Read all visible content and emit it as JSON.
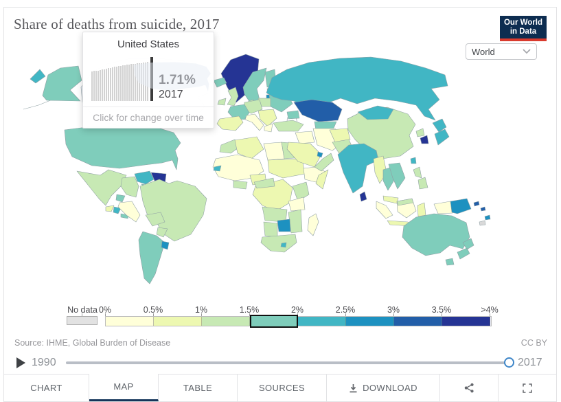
{
  "header": {
    "title": "Share of deaths from suicide, 2017",
    "logo_line1": "Our World",
    "logo_line2": "in Data"
  },
  "controls": {
    "entity_dropdown": {
      "value": "World"
    }
  },
  "tooltip": {
    "country": "United States",
    "value": "1.71%",
    "year": "2017",
    "hint": "Click for change over time",
    "sparkline_values": [
      1.31,
      1.32,
      1.33,
      1.34,
      1.36,
      1.38,
      1.4,
      1.42,
      1.44,
      1.46,
      1.48,
      1.5,
      1.52,
      1.54,
      1.55,
      1.57,
      1.58,
      1.6,
      1.61,
      1.62,
      1.63,
      1.64,
      1.65,
      1.66,
      1.67,
      1.68,
      1.7,
      1.71
    ]
  },
  "legend": {
    "no_data_label": "No data",
    "no_data_color": "#e2e2e2",
    "tick_labels": [
      "0%",
      "0.5%",
      "1%",
      "1.5%",
      "2%",
      "2.5%",
      "3%",
      "3.5%",
      ">4%"
    ],
    "bin_colors": [
      "#ffffd9",
      "#edf8b1",
      "#c7e9b4",
      "#7fcdbb",
      "#41b6c4",
      "#1d91c0",
      "#225ea8",
      "#253494"
    ],
    "highlighted_bin_index": 3
  },
  "footer": {
    "source": "Source: IHME, Global Burden of Disease",
    "license": "CC BY"
  },
  "timeline": {
    "start_year": "1990",
    "end_year": "2017"
  },
  "tabs": [
    {
      "id": "chart",
      "label": "CHART",
      "active": false
    },
    {
      "id": "map",
      "label": "MAP",
      "active": true
    },
    {
      "id": "table",
      "label": "TABLE",
      "active": false
    },
    {
      "id": "sources",
      "label": "SOURCES",
      "active": false
    },
    {
      "id": "download",
      "label": "DOWNLOAD",
      "active": false
    }
  ],
  "chart_data": {
    "type": "choropleth_map",
    "title": "Share of deaths from suicide, 2017",
    "unit": "%",
    "year_shown": 2017,
    "timeline_range": [
      1990,
      2017
    ],
    "legend_bin_edges": [
      "0%",
      "0.5%",
      "1%",
      "1.5%",
      "2%",
      "2.5%",
      "3%",
      "3.5%",
      ">4%"
    ],
    "selected_country": {
      "name": "United States",
      "share_of_deaths_pct": 1.71,
      "year": 2017,
      "bin": "1.5%-2%"
    },
    "source": "IHME, Global Burden of Disease"
  },
  "map": {
    "regions": [
      {
        "id": "canada",
        "name": "Canada",
        "color": "#e9eef6"
      },
      {
        "id": "greenland",
        "name": "Greenland",
        "color": "#253494"
      },
      {
        "id": "iceland",
        "name": "Iceland",
        "color": "#7fcdbb"
      },
      {
        "id": "chukotka-russia",
        "name": "Russia (Chukotka)",
        "color": "#41b6c4"
      },
      {
        "id": "aleutian-islands",
        "name": "Aleutian Islands",
        "color": "none"
      },
      {
        "id": "alaska",
        "name": "United States (Alaska)",
        "color": "#7fcdbb"
      },
      {
        "id": "usa",
        "name": "United States",
        "color": "#7fcdbb"
      },
      {
        "id": "mexico",
        "name": "Mexico",
        "color": "#c7e9b4"
      },
      {
        "id": "guatemala",
        "name": "Guatemala",
        "color": "#edf8b1"
      },
      {
        "id": "nicaragua",
        "name": "Nicaragua",
        "color": "#41b6c4"
      },
      {
        "id": "panama",
        "name": "Panama",
        "color": "#7fcdbb"
      },
      {
        "id": "cuba",
        "name": "Cuba",
        "color": "#7fcdbb"
      },
      {
        "id": "hispaniola",
        "name": "Haiti / Dominican Rep.",
        "color": "#41b6c4"
      },
      {
        "id": "venezuela",
        "name": "Venezuela",
        "color": "#41b6c4"
      },
      {
        "id": "guyana-suriname",
        "name": "Guyana / Suriname",
        "color": "#253494"
      },
      {
        "id": "colombia",
        "name": "Colombia",
        "color": "#c7e9b4"
      },
      {
        "id": "ecuador",
        "name": "Ecuador",
        "color": "#7fcdbb"
      },
      {
        "id": "peru",
        "name": "Peru",
        "color": "#ffffd9"
      },
      {
        "id": "brazil",
        "name": "Brazil",
        "color": "#c7e9b4"
      },
      {
        "id": "bolivia",
        "name": "Bolivia",
        "color": "#c7e9b4"
      },
      {
        "id": "paraguay",
        "name": "Paraguay",
        "color": "#c7e9b4"
      },
      {
        "id": "argentina-chile",
        "name": "Argentina / Chile",
        "color": "#7fcdbb"
      },
      {
        "id": "uruguay",
        "name": "Uruguay",
        "color": "#1d91c0"
      },
      {
        "id": "morocco",
        "name": "Morocco",
        "color": "#c7e9b4"
      },
      {
        "id": "algeria",
        "name": "Algeria",
        "color": "#edf8b1"
      },
      {
        "id": "libya",
        "name": "Libya",
        "color": "#ffffd9"
      },
      {
        "id": "egypt",
        "name": "Egypt",
        "color": "#c7e9b4"
      },
      {
        "id": "west-africa",
        "name": "West Africa",
        "color": "#ffffd9"
      },
      {
        "id": "senegal",
        "name": "Senegal",
        "color": "#41b6c4"
      },
      {
        "id": "nigeria",
        "name": "Nigeria",
        "color": "#edf8b1"
      },
      {
        "id": "ghana-ivory-coast",
        "name": "Ghana / Côte d'Ivoire",
        "color": "#c7e9b4"
      },
      {
        "id": "sudan-chad",
        "name": "Sudan / Chad",
        "color": "#edf8b1"
      },
      {
        "id": "ethiopia",
        "name": "Ethiopia",
        "color": "#ffffd9"
      },
      {
        "id": "somalia",
        "name": "Somalia",
        "color": "#edf8b1"
      },
      {
        "id": "central-africa",
        "name": "DR Congo",
        "color": "#edf8b1"
      },
      {
        "id": "cameroon-car",
        "name": "Cameroon / CAR",
        "color": "#c7e9b4"
      },
      {
        "id": "kenya",
        "name": "Kenya",
        "color": "#c7e9b4"
      },
      {
        "id": "tanzania",
        "name": "Tanzania",
        "color": "#ffffd9"
      },
      {
        "id": "angola-zambia",
        "name": "Angola / Zambia",
        "color": "#c7e9b4"
      },
      {
        "id": "mozambique",
        "name": "Mozambique",
        "color": "#c7e9b4"
      },
      {
        "id": "zimbabwe",
        "name": "Zimbabwe",
        "color": "#1d91c0"
      },
      {
        "id": "namibia-botswana",
        "name": "Namibia / Botswana",
        "color": "#c7e9b4"
      },
      {
        "id": "south-africa",
        "name": "South Africa",
        "color": "#c7e9b4"
      },
      {
        "id": "lesotho",
        "name": "Lesotho",
        "color": "#41b6c4"
      },
      {
        "id": "madagascar",
        "name": "Madagascar",
        "color": "#ffffd9"
      },
      {
        "id": "ireland",
        "name": "Ireland",
        "color": "#c7e9b4"
      },
      {
        "id": "uk",
        "name": "United Kingdom",
        "color": "#c7e9b4"
      },
      {
        "id": "norway-sweden",
        "name": "Norway / Sweden",
        "color": "#7fcdbb"
      },
      {
        "id": "finland",
        "name": "Finland",
        "color": "#7fcdbb"
      },
      {
        "id": "denmark",
        "name": "Denmark",
        "color": "#c7e9b4"
      },
      {
        "id": "baltics",
        "name": "Estonia / Latvia",
        "color": "#c7e9b4"
      },
      {
        "id": "lithuania",
        "name": "Lithuania",
        "color": "#1d91c0"
      },
      {
        "id": "ukraine-belarus",
        "name": "Ukraine / Belarus",
        "color": "#7fcdbb"
      },
      {
        "id": "poland",
        "name": "Poland",
        "color": "#c7e9b4"
      },
      {
        "id": "germany-central-europe",
        "name": "Germany / Central Europe",
        "color": "#c7e9b4"
      },
      {
        "id": "france",
        "name": "France",
        "color": "#7fcdbb"
      },
      {
        "id": "iberia",
        "name": "Spain / Portugal",
        "color": "#edf8b1"
      },
      {
        "id": "italy",
        "name": "Italy",
        "color": "#ffffd9"
      },
      {
        "id": "balkans",
        "name": "Balkans",
        "color": "#edf8b1"
      },
      {
        "id": "greece",
        "name": "Greece",
        "color": "#ffffd9"
      },
      {
        "id": "russia",
        "name": "Russia",
        "color": "#41b6c4"
      },
      {
        "id": "kazakhstan",
        "name": "Kazakhstan",
        "color": "#225ea8"
      },
      {
        "id": "caspian-sea",
        "name": "Caspian Sea",
        "color": "#ffffff"
      },
      {
        "id": "central-asia",
        "name": "Uzbekistan / Turkmenistan",
        "color": "#7fcdbb"
      },
      {
        "id": "caucasus",
        "name": "Caucasus",
        "color": "#7fcdbb"
      },
      {
        "id": "turkey",
        "name": "Turkey",
        "color": "#c7e9b4"
      },
      {
        "id": "syria-iraq",
        "name": "Syria / Iraq",
        "color": "#ffffd9"
      },
      {
        "id": "iran",
        "name": "Iran",
        "color": "#ffffd9"
      },
      {
        "id": "saudi-arabia",
        "name": "Saudi Arabia",
        "color": "#edf8b1"
      },
      {
        "id": "yemen-oman",
        "name": "Yemen / Oman",
        "color": "#c7e9b4"
      },
      {
        "id": "qatar",
        "name": "Qatar",
        "color": "#1d91c0"
      },
      {
        "id": "afghanistan",
        "name": "Afghanistan",
        "color": "#edf8b1"
      },
      {
        "id": "pakistan",
        "name": "Pakistan",
        "color": "#c7e9b4"
      },
      {
        "id": "china",
        "name": "China",
        "color": "#c7e9b4"
      },
      {
        "id": "mongolia",
        "name": "Mongolia",
        "color": "#41b6c4"
      },
      {
        "id": "india",
        "name": "India",
        "color": "#41b6c4"
      },
      {
        "id": "sri-lanka",
        "name": "Sri Lanka",
        "color": "#253494"
      },
      {
        "id": "north-korea",
        "name": "North Korea",
        "color": "#c7e9b4"
      },
      {
        "id": "south-korea",
        "name": "South Korea",
        "color": "#253494"
      },
      {
        "id": "japan",
        "name": "Japan",
        "color": "#41b6c4"
      },
      {
        "id": "taiwan",
        "name": "Taiwan",
        "color": "#41b6c4"
      },
      {
        "id": "myanmar",
        "name": "Myanmar",
        "color": "#edf8b1"
      },
      {
        "id": "thailand",
        "name": "Thailand",
        "color": "#7fcdbb"
      },
      {
        "id": "vietnam-laos",
        "name": "Vietnam / Laos",
        "color": "#7fcdbb"
      },
      {
        "id": "malaysia",
        "name": "Malaysia",
        "color": "#edf8b1"
      },
      {
        "id": "sumatra",
        "name": "Indonesia (Sumatra)",
        "color": "#ffffd9"
      },
      {
        "id": "java",
        "name": "Indonesia (Java)",
        "color": "#edf8b1"
      },
      {
        "id": "borneo",
        "name": "Indonesia (Borneo)",
        "color": "#ffffd9"
      },
      {
        "id": "malaysia-borneo",
        "name": "Malaysia (Borneo)",
        "color": "#c7e9b4"
      },
      {
        "id": "sulawesi",
        "name": "Indonesia (Sulawesi)",
        "color": "#edf8b1"
      },
      {
        "id": "philippines",
        "name": "Philippines",
        "color": "#c7e9b4"
      },
      {
        "id": "west-papua",
        "name": "Indonesia (Papua)",
        "color": "#ffffd9"
      },
      {
        "id": "papua-new-guinea",
        "name": "Papua New Guinea",
        "color": "#1d91c0"
      },
      {
        "id": "solomon-islands",
        "name": "Solomon Islands",
        "color": "#225ea8"
      },
      {
        "id": "vanuatu-fiji",
        "name": "Vanuatu / Fiji",
        "color": "#1d91c0"
      },
      {
        "id": "new-caledonia",
        "name": "New Caledonia",
        "color": "#d9d9d9"
      },
      {
        "id": "australia",
        "name": "Australia",
        "color": "#7fcdbb"
      },
      {
        "id": "tasmania",
        "name": "Tasmania",
        "color": "#7fcdbb"
      },
      {
        "id": "new-zealand",
        "name": "New Zealand",
        "color": "#7fcdbb"
      }
    ]
  }
}
